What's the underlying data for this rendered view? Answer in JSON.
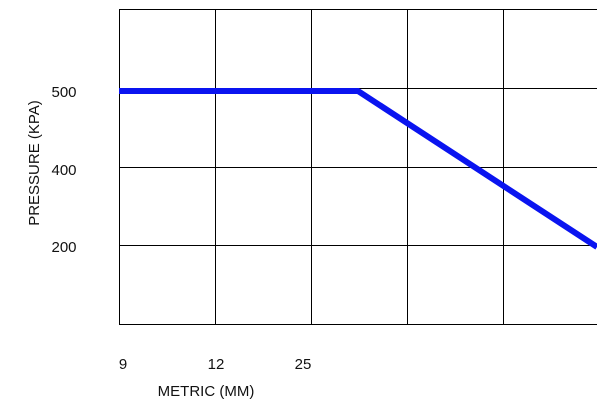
{
  "chart_data": {
    "type": "line",
    "title": "",
    "xlabel": "METRIC (MM)",
    "ylabel": "PRESSURE (KPA)",
    "x_tick_labels": [
      "9",
      "12",
      "25"
    ],
    "y_tick_labels": [
      "500",
      "400",
      "200"
    ],
    "grid": true,
    "series": [
      {
        "color": "#0a14f0",
        "points": [
          {
            "x": "9",
            "y": 500
          },
          {
            "x": "between 25 and next grid line",
            "y": 500
          },
          {
            "x": "beyond last grid line",
            "y": 200
          }
        ]
      }
    ]
  }
}
